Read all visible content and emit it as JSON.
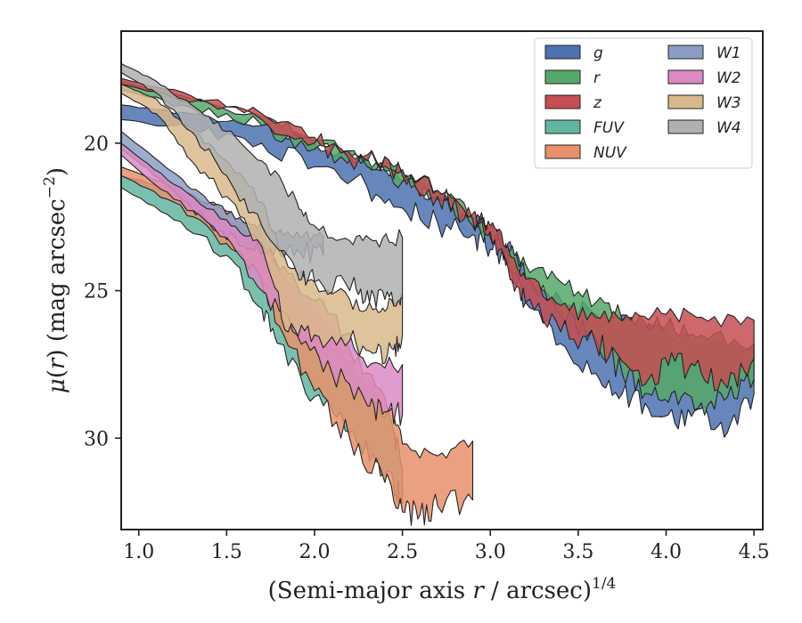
{
  "chart_data": {
    "type": "area",
    "xlabel_main": "(Semi-major axis ",
    "xlabel_var": "r",
    "xlabel_after": " / arcsec)",
    "xlabel_exp": "1/4",
    "ylabel_mu": "μ",
    "ylabel_paren_open": "(",
    "ylabel_var": "r",
    "ylabel_after": ") (mag arcsec",
    "ylabel_exp": "−2",
    "ylabel_close": ")",
    "xlim": [
      0.9,
      4.55
    ],
    "ylim": [
      33.1,
      16.2
    ],
    "y_inverted": true,
    "xticks": [
      1.0,
      1.5,
      2.0,
      2.5,
      3.0,
      3.5,
      4.0,
      4.5
    ],
    "xtick_labels": [
      "1.0",
      "1.5",
      "2.0",
      "2.5",
      "3.0",
      "3.5",
      "4.0",
      "4.5"
    ],
    "yticks": [
      20,
      25,
      30
    ],
    "ytick_labels": [
      "20",
      "25",
      "30"
    ],
    "grid": false,
    "legend_placement": "top-right",
    "legend_columns": 2,
    "series": [
      {
        "name": "g",
        "color": "#4c72b0",
        "upper": [
          [
            0.9,
            18.7
          ],
          [
            1.3,
            19.0
          ],
          [
            1.7,
            19.4
          ],
          [
            2.0,
            20.0
          ],
          [
            2.3,
            20.7
          ],
          [
            2.5,
            21.3
          ],
          [
            2.7,
            21.8
          ],
          [
            2.9,
            22.6
          ],
          [
            3.0,
            23.0
          ],
          [
            3.1,
            23.4
          ],
          [
            3.2,
            24.5
          ],
          [
            3.4,
            25.3
          ],
          [
            3.6,
            25.8
          ],
          [
            3.8,
            26.1
          ],
          [
            4.0,
            26.4
          ],
          [
            4.2,
            26.8
          ],
          [
            4.5,
            27.0
          ]
        ],
        "lower": [
          [
            4.5,
            28.5
          ],
          [
            4.35,
            29.8
          ],
          [
            4.2,
            29.0
          ],
          [
            4.05,
            29.5
          ],
          [
            3.9,
            29.0
          ],
          [
            3.75,
            28.5
          ],
          [
            3.6,
            27.8
          ],
          [
            3.4,
            26.8
          ],
          [
            3.2,
            25.4
          ],
          [
            3.1,
            24.0
          ],
          [
            3.0,
            23.6
          ],
          [
            2.9,
            23.1
          ],
          [
            2.7,
            22.7
          ],
          [
            2.5,
            22.2
          ],
          [
            2.3,
            21.5
          ],
          [
            2.0,
            20.8
          ],
          [
            1.7,
            20.0
          ],
          [
            1.3,
            19.5
          ],
          [
            0.9,
            19.2
          ]
        ]
      },
      {
        "name": "r",
        "color": "#55a868",
        "upper": [
          [
            0.9,
            17.9
          ],
          [
            1.3,
            18.5
          ],
          [
            1.7,
            19.1
          ],
          [
            2.0,
            19.9
          ],
          [
            2.3,
            20.5
          ],
          [
            2.5,
            21.0
          ],
          [
            2.7,
            21.6
          ],
          [
            2.9,
            22.5
          ],
          [
            3.0,
            22.9
          ],
          [
            3.1,
            23.6
          ],
          [
            3.2,
            24.1
          ],
          [
            3.4,
            24.7
          ],
          [
            3.6,
            25.4
          ],
          [
            3.8,
            25.9
          ],
          [
            4.0,
            26.2
          ],
          [
            4.2,
            26.5
          ],
          [
            4.5,
            26.8
          ]
        ],
        "lower": [
          [
            4.5,
            28.0
          ],
          [
            4.35,
            28.6
          ],
          [
            4.2,
            28.8
          ],
          [
            4.05,
            28.4
          ],
          [
            3.9,
            28.5
          ],
          [
            3.75,
            27.8
          ],
          [
            3.6,
            26.6
          ],
          [
            3.4,
            25.8
          ],
          [
            3.2,
            24.6
          ],
          [
            3.1,
            23.9
          ],
          [
            3.0,
            23.2
          ],
          [
            2.9,
            22.8
          ],
          [
            2.7,
            21.9
          ],
          [
            2.5,
            21.3
          ],
          [
            2.3,
            20.8
          ],
          [
            2.0,
            20.2
          ],
          [
            1.7,
            19.4
          ],
          [
            1.3,
            18.8
          ],
          [
            0.9,
            18.2
          ]
        ]
      },
      {
        "name": "z",
        "color": "#c44e52",
        "upper": [
          [
            0.9,
            17.8
          ],
          [
            1.3,
            18.4
          ],
          [
            1.7,
            19.0
          ],
          [
            2.0,
            19.8
          ],
          [
            2.3,
            20.4
          ],
          [
            2.5,
            20.9
          ],
          [
            2.7,
            21.6
          ],
          [
            2.9,
            22.4
          ],
          [
            3.0,
            22.8
          ],
          [
            3.1,
            23.5
          ],
          [
            3.2,
            24.6
          ],
          [
            3.4,
            25.5
          ],
          [
            3.6,
            25.9
          ],
          [
            3.8,
            26.0
          ],
          [
            4.0,
            25.8
          ],
          [
            4.2,
            25.9
          ],
          [
            4.5,
            26.0
          ]
        ],
        "lower": [
          [
            4.5,
            27.3
          ],
          [
            4.35,
            28.3
          ],
          [
            4.2,
            27.8
          ],
          [
            4.05,
            27.4
          ],
          [
            3.9,
            28.0
          ],
          [
            3.75,
            27.4
          ],
          [
            3.6,
            26.8
          ],
          [
            3.4,
            26.4
          ],
          [
            3.2,
            25.4
          ],
          [
            3.1,
            24.2
          ],
          [
            3.0,
            23.0
          ],
          [
            2.9,
            22.6
          ],
          [
            2.7,
            21.8
          ],
          [
            2.5,
            21.1
          ],
          [
            2.3,
            20.6
          ],
          [
            2.0,
            20.0
          ],
          [
            1.7,
            19.2
          ],
          [
            1.3,
            18.6
          ],
          [
            0.9,
            18.0
          ]
        ]
      },
      {
        "name": "FUV",
        "color": "#64b5a0",
        "upper": [
          [
            0.9,
            21.1
          ],
          [
            1.2,
            21.6
          ],
          [
            1.5,
            22.5
          ],
          [
            1.7,
            23.5
          ],
          [
            1.8,
            25.2
          ],
          [
            2.0,
            26.4
          ],
          [
            2.2,
            27.4
          ],
          [
            2.35,
            28.6
          ],
          [
            2.45,
            29.8
          ],
          [
            2.5,
            31.0
          ]
        ],
        "lower": [
          [
            2.5,
            32.2
          ],
          [
            2.45,
            31.5
          ],
          [
            2.35,
            30.8
          ],
          [
            2.2,
            29.8
          ],
          [
            2.0,
            28.6
          ],
          [
            1.8,
            26.8
          ],
          [
            1.7,
            25.6
          ],
          [
            1.5,
            23.8
          ],
          [
            1.2,
            22.6
          ],
          [
            0.9,
            21.5
          ]
        ]
      },
      {
        "name": "NUV",
        "color": "#e8916b",
        "upper": [
          [
            0.9,
            20.8
          ],
          [
            1.2,
            21.5
          ],
          [
            1.5,
            22.3
          ],
          [
            1.7,
            23.2
          ],
          [
            1.8,
            24.3
          ],
          [
            2.0,
            25.8
          ],
          [
            2.2,
            27.0
          ],
          [
            2.4,
            28.6
          ],
          [
            2.5,
            30.2
          ],
          [
            2.7,
            30.6
          ],
          [
            2.9,
            30.1
          ]
        ],
        "lower": [
          [
            2.9,
            32.1
          ],
          [
            2.7,
            32.3
          ],
          [
            2.6,
            32.6
          ],
          [
            2.5,
            32.5
          ],
          [
            2.4,
            31.5
          ],
          [
            2.2,
            30.0
          ],
          [
            2.0,
            28.4
          ],
          [
            1.8,
            26.2
          ],
          [
            1.7,
            24.6
          ],
          [
            1.5,
            23.4
          ],
          [
            1.2,
            22.0
          ],
          [
            0.9,
            21.1
          ]
        ]
      },
      {
        "name": "W1",
        "color": "#8c9dc4",
        "upper": [
          [
            0.9,
            19.6
          ],
          [
            1.2,
            21.0
          ],
          [
            1.4,
            22.0
          ],
          [
            1.6,
            22.7
          ],
          [
            1.75,
            22.9
          ],
          [
            1.9,
            23.0
          ],
          [
            2.05,
            23.2
          ]
        ],
        "lower": [
          [
            2.05,
            23.8
          ],
          [
            1.9,
            23.6
          ],
          [
            1.75,
            23.6
          ],
          [
            1.6,
            23.5
          ],
          [
            1.4,
            22.7
          ],
          [
            1.2,
            21.6
          ],
          [
            0.9,
            20.2
          ]
        ]
      },
      {
        "name": "W2",
        "color": "#da8bc3",
        "upper": [
          [
            0.9,
            20.0
          ],
          [
            1.2,
            21.4
          ],
          [
            1.5,
            22.6
          ],
          [
            1.7,
            23.4
          ],
          [
            1.9,
            24.8
          ],
          [
            2.1,
            25.8
          ],
          [
            2.3,
            27.6
          ],
          [
            2.5,
            27.5
          ]
        ],
        "lower": [
          [
            2.5,
            29.2
          ],
          [
            2.4,
            29.1
          ],
          [
            2.3,
            28.9
          ],
          [
            2.1,
            27.8
          ],
          [
            1.9,
            26.5
          ],
          [
            1.7,
            25.0
          ],
          [
            1.5,
            23.2
          ],
          [
            1.2,
            21.9
          ],
          [
            0.9,
            20.4
          ]
        ]
      },
      {
        "name": "W3",
        "color": "#d9b98c",
        "upper": [
          [
            0.9,
            18.0
          ],
          [
            1.1,
            18.5
          ],
          [
            1.3,
            19.6
          ],
          [
            1.5,
            20.6
          ],
          [
            1.7,
            22.0
          ],
          [
            1.85,
            24.2
          ],
          [
            2.0,
            24.7
          ],
          [
            2.2,
            25.3
          ],
          [
            2.35,
            25.6
          ],
          [
            2.45,
            25.5
          ],
          [
            2.5,
            25.2
          ]
        ],
        "lower": [
          [
            2.5,
            26.5
          ],
          [
            2.45,
            27.0
          ],
          [
            2.35,
            27.1
          ],
          [
            2.2,
            26.7
          ],
          [
            2.0,
            26.5
          ],
          [
            1.85,
            26.4
          ],
          [
            1.7,
            23.5
          ],
          [
            1.5,
            21.8
          ],
          [
            1.3,
            20.6
          ],
          [
            1.1,
            19.0
          ],
          [
            0.9,
            18.3
          ]
        ]
      },
      {
        "name": "W4",
        "color": "#b0b0b0",
        "upper": [
          [
            0.9,
            17.3
          ],
          [
            1.1,
            17.9
          ],
          [
            1.3,
            18.7
          ],
          [
            1.5,
            19.6
          ],
          [
            1.7,
            20.6
          ],
          [
            1.9,
            22.0
          ],
          [
            2.0,
            22.8
          ],
          [
            2.2,
            23.3
          ],
          [
            2.35,
            23.3
          ],
          [
            2.5,
            23.2
          ]
        ],
        "lower": [
          [
            2.5,
            25.2
          ],
          [
            2.4,
            25.3
          ],
          [
            2.3,
            25.0
          ],
          [
            2.2,
            25.0
          ],
          [
            2.0,
            24.7
          ],
          [
            1.9,
            24.4
          ],
          [
            1.7,
            22.8
          ],
          [
            1.5,
            21.1
          ],
          [
            1.3,
            19.6
          ],
          [
            1.1,
            18.3
          ],
          [
            0.9,
            17.6
          ]
        ]
      }
    ]
  }
}
